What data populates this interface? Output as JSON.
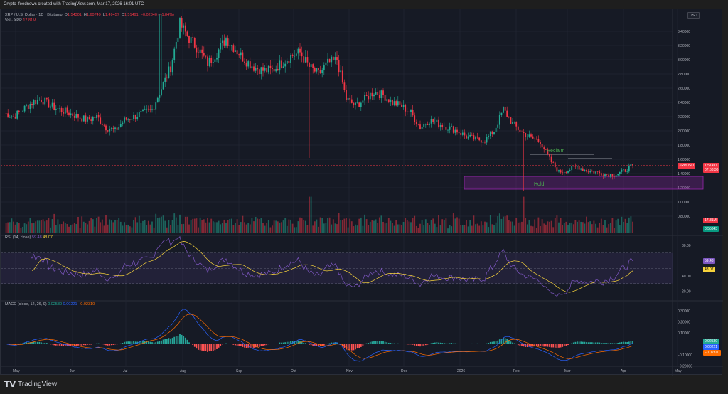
{
  "header": {
    "caption": "Crypto_feednews created with TradingView.com, Mar 17, 2026 16:01 UTC"
  },
  "legend": {
    "symbol": "XRP / U.S. Dollar · 1D · Bitstamp",
    "o_label": "O",
    "o": "1.54301",
    "h_label": "H",
    "h": "1.60749",
    "l_label": "L",
    "l": "1.49457",
    "c_label": "C",
    "c": "1.51491",
    "change": "−0.02840 (−1.84%)",
    "vol_label": "Vol · XRP",
    "vol": "17.81M"
  },
  "rsi": {
    "label": "RSI (14, close)",
    "value": "59.48",
    "ma": "48.07",
    "ticks": [
      "80.00",
      "40.00",
      "20.00"
    ]
  },
  "macd": {
    "label": "MACD (close, 12, 26, 9)",
    "hist": "0.02530",
    "macd": "0.00221",
    "signal": "−0.02310",
    "ticks": [
      "0.30000",
      "0.20000",
      "0.10000",
      "−0.10000",
      "−0.20000"
    ]
  },
  "price_axis": {
    "currency": "USD",
    "ticks": [
      "3.40000",
      "3.20000",
      "3.00000",
      "2.80000",
      "2.60000",
      "2.40000",
      "2.20000",
      "2.00000",
      "1.80000",
      "1.60000",
      "1.40000",
      "1.20000",
      "1.00000",
      "0.80000"
    ],
    "symbol_tag": "XRPUSD",
    "last_price": "1.51491",
    "countdown": "07:58:30",
    "vol_tag": "17.81M",
    "vol_ma_tag": "0.55343"
  },
  "time_axis": [
    "May",
    "Jun",
    "Jul",
    "Aug",
    "Sep",
    "Oct",
    "Nov",
    "Dec",
    "2026",
    "Feb",
    "Mar",
    "Apr",
    "May"
  ],
  "annotations": {
    "reclaim": "Reclaim",
    "hold": "Hold",
    "hold_zone": [
      1.18,
      1.36
    ],
    "reclaim_levels": [
      1.67,
      1.61
    ]
  },
  "colors": {
    "up": "#22ab94",
    "down": "#f23645",
    "rsi": "#7e57c2",
    "rsi_ma": "#f7d33b",
    "macd": "#2962ff",
    "signal": "#ff6d00",
    "zone": "#9c27b0"
  },
  "chart_data": {
    "type": "candlestick",
    "interval": "1D",
    "start": "2025-04-26",
    "step_days": 5,
    "closes": [
      2.25,
      2.2,
      2.3,
      2.4,
      2.45,
      2.35,
      2.3,
      2.25,
      2.2,
      2.15,
      2.2,
      2.05,
      2.0,
      2.15,
      2.2,
      2.25,
      2.3,
      2.6,
      2.9,
      3.5,
      3.3,
      3.15,
      2.95,
      3.1,
      3.3,
      3.15,
      3.0,
      2.9,
      2.85,
      2.85,
      2.95,
      3.05,
      3.1,
      2.9,
      2.8,
      2.95,
      3.0,
      2.45,
      2.35,
      2.45,
      2.55,
      2.5,
      2.4,
      2.35,
      2.25,
      2.05,
      2.15,
      2.1,
      2.05,
      2.0,
      1.92,
      1.88,
      1.87,
      2.0,
      2.3,
      2.1,
      1.98,
      1.9,
      1.85,
      1.6,
      1.42,
      1.45,
      1.5,
      1.44,
      1.42,
      1.39,
      1.38,
      1.43,
      1.51491
    ]
  }
}
